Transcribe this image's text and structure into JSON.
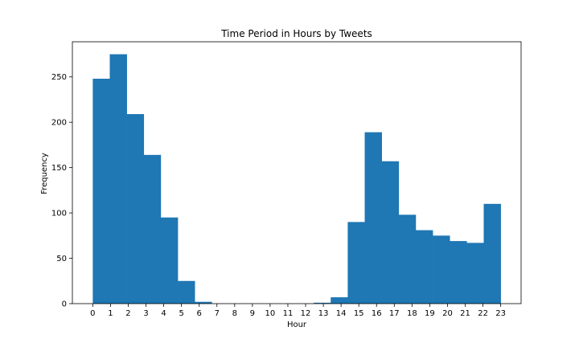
{
  "chart_data": {
    "type": "bar",
    "title": "Time Period in Hours by Tweets",
    "xlabel": "Hour",
    "ylabel": "Frequency",
    "bin_edges": [
      0,
      0.958,
      1.917,
      2.875,
      3.833,
      4.792,
      5.75,
      6.708,
      7.667,
      8.625,
      9.583,
      10.542,
      11.5,
      12.458,
      13.417,
      14.375,
      15.333,
      16.292,
      17.25,
      18.208,
      19.167,
      20.125,
      21.083,
      22.042,
      23
    ],
    "values": [
      248,
      275,
      209,
      164,
      95,
      25,
      2,
      0,
      0,
      0,
      0,
      0,
      0,
      1,
      7,
      90,
      189,
      157,
      98,
      81,
      75,
      69,
      67,
      110
    ],
    "x_ticks": [
      "0",
      "1",
      "2",
      "3",
      "4",
      "5",
      "6",
      "7",
      "8",
      "9",
      "10",
      "11",
      "12",
      "13",
      "14",
      "15",
      "16",
      "17",
      "18",
      "19",
      "20",
      "21",
      "22",
      "23"
    ],
    "y_ticks": [
      "0",
      "50",
      "100",
      "150",
      "200",
      "250"
    ],
    "xlim": [
      -1.15,
      24.15
    ],
    "ylim": [
      0,
      288.75
    ],
    "bar_color": "#1f77b4",
    "grid": false,
    "legend": "none"
  }
}
